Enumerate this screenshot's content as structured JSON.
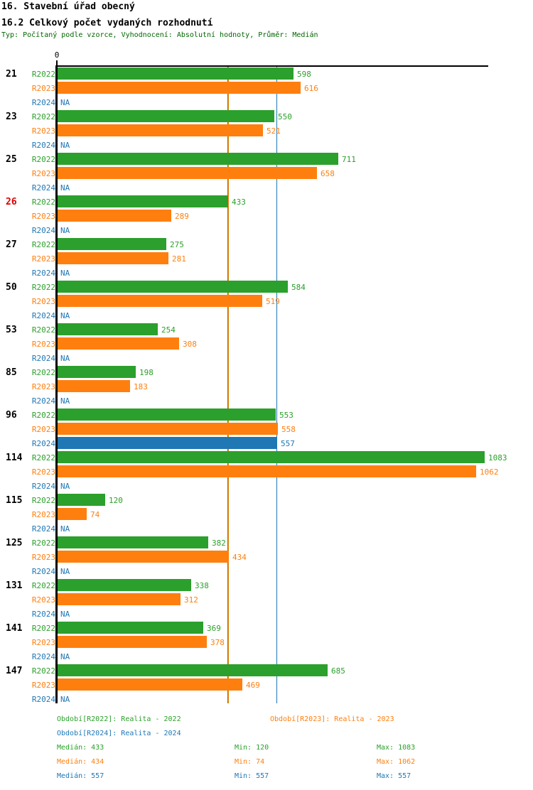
{
  "title": "16. Stavební úřad obecný",
  "subtitle": "16.2 Celkový počet vydaných rozhodnutí",
  "meta": "Typ: Počítaný podle vzorce, Vyhodnocení: Absolutní hodnoty, Průměr: Medián",
  "colors": {
    "r2022_green": "#2CA02C",
    "r2023_orange": "#FF7F0E",
    "r2024_blue": "#1F77B4",
    "meta_text_green": "#006600",
    "highlight_red": "#DD0000",
    "axis_black": "#000000"
  },
  "chart_data": {
    "type": "bar",
    "orientation": "horizontal",
    "x_axis": {
      "origin_label": "0",
      "min": 0,
      "max_visible": 1094,
      "gridlines": false
    },
    "series": [
      {
        "name": "R2022",
        "color": "#2CA02C"
      },
      {
        "name": "R2023",
        "color": "#FF7F0E"
      },
      {
        "name": "R2024",
        "color": "#1F77B4"
      }
    ],
    "na_text": "NA",
    "groups": [
      {
        "label": "21",
        "highlight": false,
        "values": [
          598,
          616,
          null
        ]
      },
      {
        "label": "23",
        "highlight": false,
        "values": [
          550,
          521,
          null
        ]
      },
      {
        "label": "25",
        "highlight": false,
        "values": [
          711,
          658,
          null
        ]
      },
      {
        "label": "26",
        "highlight": true,
        "values": [
          433,
          289,
          null
        ]
      },
      {
        "label": "27",
        "highlight": false,
        "values": [
          275,
          281,
          null
        ]
      },
      {
        "label": "50",
        "highlight": false,
        "values": [
          584,
          519,
          null
        ]
      },
      {
        "label": "53",
        "highlight": false,
        "values": [
          254,
          308,
          null
        ]
      },
      {
        "label": "85",
        "highlight": false,
        "values": [
          198,
          183,
          null
        ]
      },
      {
        "label": "96",
        "highlight": false,
        "values": [
          553,
          558,
          557
        ]
      },
      {
        "label": "114",
        "highlight": false,
        "values": [
          1083,
          1062,
          null
        ]
      },
      {
        "label": "115",
        "highlight": false,
        "values": [
          120,
          74,
          null
        ]
      },
      {
        "label": "125",
        "highlight": false,
        "values": [
          382,
          434,
          null
        ]
      },
      {
        "label": "131",
        "highlight": false,
        "values": [
          338,
          312,
          null
        ]
      },
      {
        "label": "141",
        "highlight": false,
        "values": [
          369,
          378,
          null
        ]
      },
      {
        "label": "147",
        "highlight": false,
        "values": [
          685,
          469,
          null
        ]
      }
    ],
    "reference_lines": [
      {
        "value": 433,
        "color": "#2CA02C",
        "label": "median-r2022"
      },
      {
        "value": 434,
        "color": "#FF7F0E",
        "label": "median-r2023"
      },
      {
        "value": 557,
        "color": "#1F77B4",
        "label": "median-r2024"
      }
    ]
  },
  "legend": {
    "items": [
      {
        "text": "Období[R2022]: Realita - 2022",
        "color": "#2CA02C"
      },
      {
        "text": "Období[R2023]: Realita - 2023",
        "color": "#FF7F0E"
      },
      {
        "text": "Období[R2024]: Realita - 2024",
        "color": "#1F77B4"
      }
    ]
  },
  "stats": {
    "rows": [
      {
        "color": "#2CA02C",
        "median": "Medián: 433",
        "min": "Min: 120",
        "max": "Max: 1083"
      },
      {
        "color": "#FF7F0E",
        "median": "Medián: 434",
        "min": "Min: 74",
        "max": "Max: 1062"
      },
      {
        "color": "#1F77B4",
        "median": "Medián: 557",
        "min": "Min: 557",
        "max": "Max: 557"
      }
    ]
  }
}
